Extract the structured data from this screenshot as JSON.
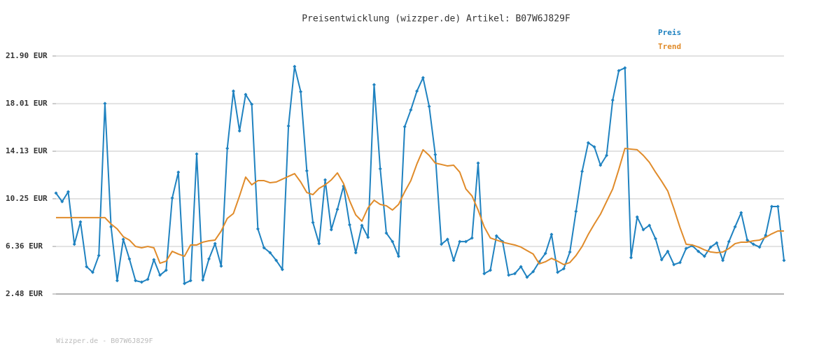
{
  "chart_data": {
    "type": "line",
    "title": "Preisentwicklung (wizzper.de) Artikel: B07W6J829F",
    "footer": "Wizzper.de - B07W6J829F",
    "ylim": [
      2.48,
      21.9
    ],
    "yticks": [
      {
        "value": 2.48,
        "label": "2.48 EUR"
      },
      {
        "value": 6.36,
        "label": "6.36 EUR"
      },
      {
        "value": 10.25,
        "label": "10.25 EUR"
      },
      {
        "value": 14.13,
        "label": "14.13 EUR"
      },
      {
        "value": 18.01,
        "label": "18.01 EUR"
      },
      {
        "value": 21.9,
        "label": "21.90 EUR"
      }
    ],
    "grid": true,
    "legend": "top-right",
    "series": [
      {
        "name": "Preis",
        "color": "#1f82c0",
        "markers": true,
        "values": [
          10.71,
          10.02,
          10.82,
          6.54,
          8.36,
          4.71,
          4.25,
          5.62,
          18.02,
          7.96,
          3.57,
          6.94,
          5.34,
          3.57,
          3.45,
          3.68,
          5.28,
          4.02,
          4.42,
          10.31,
          12.42,
          3.34,
          3.57,
          13.9,
          3.62,
          5.34,
          6.59,
          4.76,
          14.36,
          19.04,
          15.79,
          18.76,
          17.96,
          7.79,
          6.25,
          5.85,
          5.22,
          4.48,
          16.19,
          21.04,
          18.99,
          12.53,
          8.31,
          6.59,
          11.79,
          7.73,
          9.39,
          11.28,
          8.13,
          5.85,
          8.08,
          7.11,
          19.56,
          12.7,
          7.45,
          6.76,
          5.56,
          16.13,
          17.5,
          19.04,
          20.13,
          17.79,
          13.85,
          6.54,
          6.94,
          5.22,
          6.76,
          6.76,
          7.05,
          13.16,
          4.14,
          4.42,
          7.22,
          6.76,
          4.02,
          4.14,
          4.71,
          3.85,
          4.31,
          5.11,
          5.79,
          7.34,
          4.25,
          4.54,
          5.91,
          9.22,
          12.48,
          14.82,
          14.48,
          12.99,
          13.79,
          18.3,
          20.7,
          20.93,
          5.45,
          8.76,
          7.73,
          8.08,
          6.99,
          5.28,
          5.96,
          4.88,
          5.05,
          6.19,
          6.42,
          5.96,
          5.56,
          6.31,
          6.65,
          5.22,
          6.76,
          7.96,
          9.11,
          6.88,
          6.54,
          6.31,
          7.28,
          9.62,
          9.62,
          5.22
        ]
      },
      {
        "name": "Trend",
        "color": "#e08b2a",
        "markers": false,
        "values": [
          8.71,
          8.71,
          8.71,
          8.71,
          8.71,
          8.71,
          8.71,
          8.71,
          8.71,
          8.19,
          7.79,
          7.16,
          6.88,
          6.36,
          6.25,
          6.36,
          6.25,
          4.99,
          5.16,
          5.96,
          5.74,
          5.56,
          6.48,
          6.48,
          6.71,
          6.82,
          6.88,
          7.62,
          8.65,
          9.05,
          10.48,
          12.02,
          11.39,
          11.73,
          11.73,
          11.56,
          11.62,
          11.85,
          12.08,
          12.3,
          11.62,
          10.76,
          10.59,
          11.1,
          11.39,
          11.79,
          12.36,
          11.5,
          10.08,
          8.93,
          8.42,
          9.51,
          10.13,
          9.79,
          9.68,
          9.33,
          9.79,
          10.82,
          11.73,
          13.1,
          14.25,
          13.79,
          13.16,
          13.05,
          12.93,
          12.99,
          12.42,
          11.05,
          10.48,
          9.33,
          7.96,
          7.05,
          6.88,
          6.71,
          6.59,
          6.48,
          6.31,
          6.02,
          5.74,
          4.94,
          5.11,
          5.39,
          5.16,
          4.88,
          5.05,
          5.62,
          6.36,
          7.34,
          8.19,
          8.99,
          10.02,
          11.05,
          12.65,
          14.36,
          14.3,
          14.25,
          13.79,
          13.22,
          12.42,
          11.68,
          10.88,
          9.45,
          7.91,
          6.54,
          6.48,
          6.31,
          6.08,
          5.91,
          5.85,
          5.91,
          6.19,
          6.59,
          6.71,
          6.71,
          6.82,
          6.88,
          7.11,
          7.39,
          7.62,
          7.62
        ]
      }
    ]
  }
}
